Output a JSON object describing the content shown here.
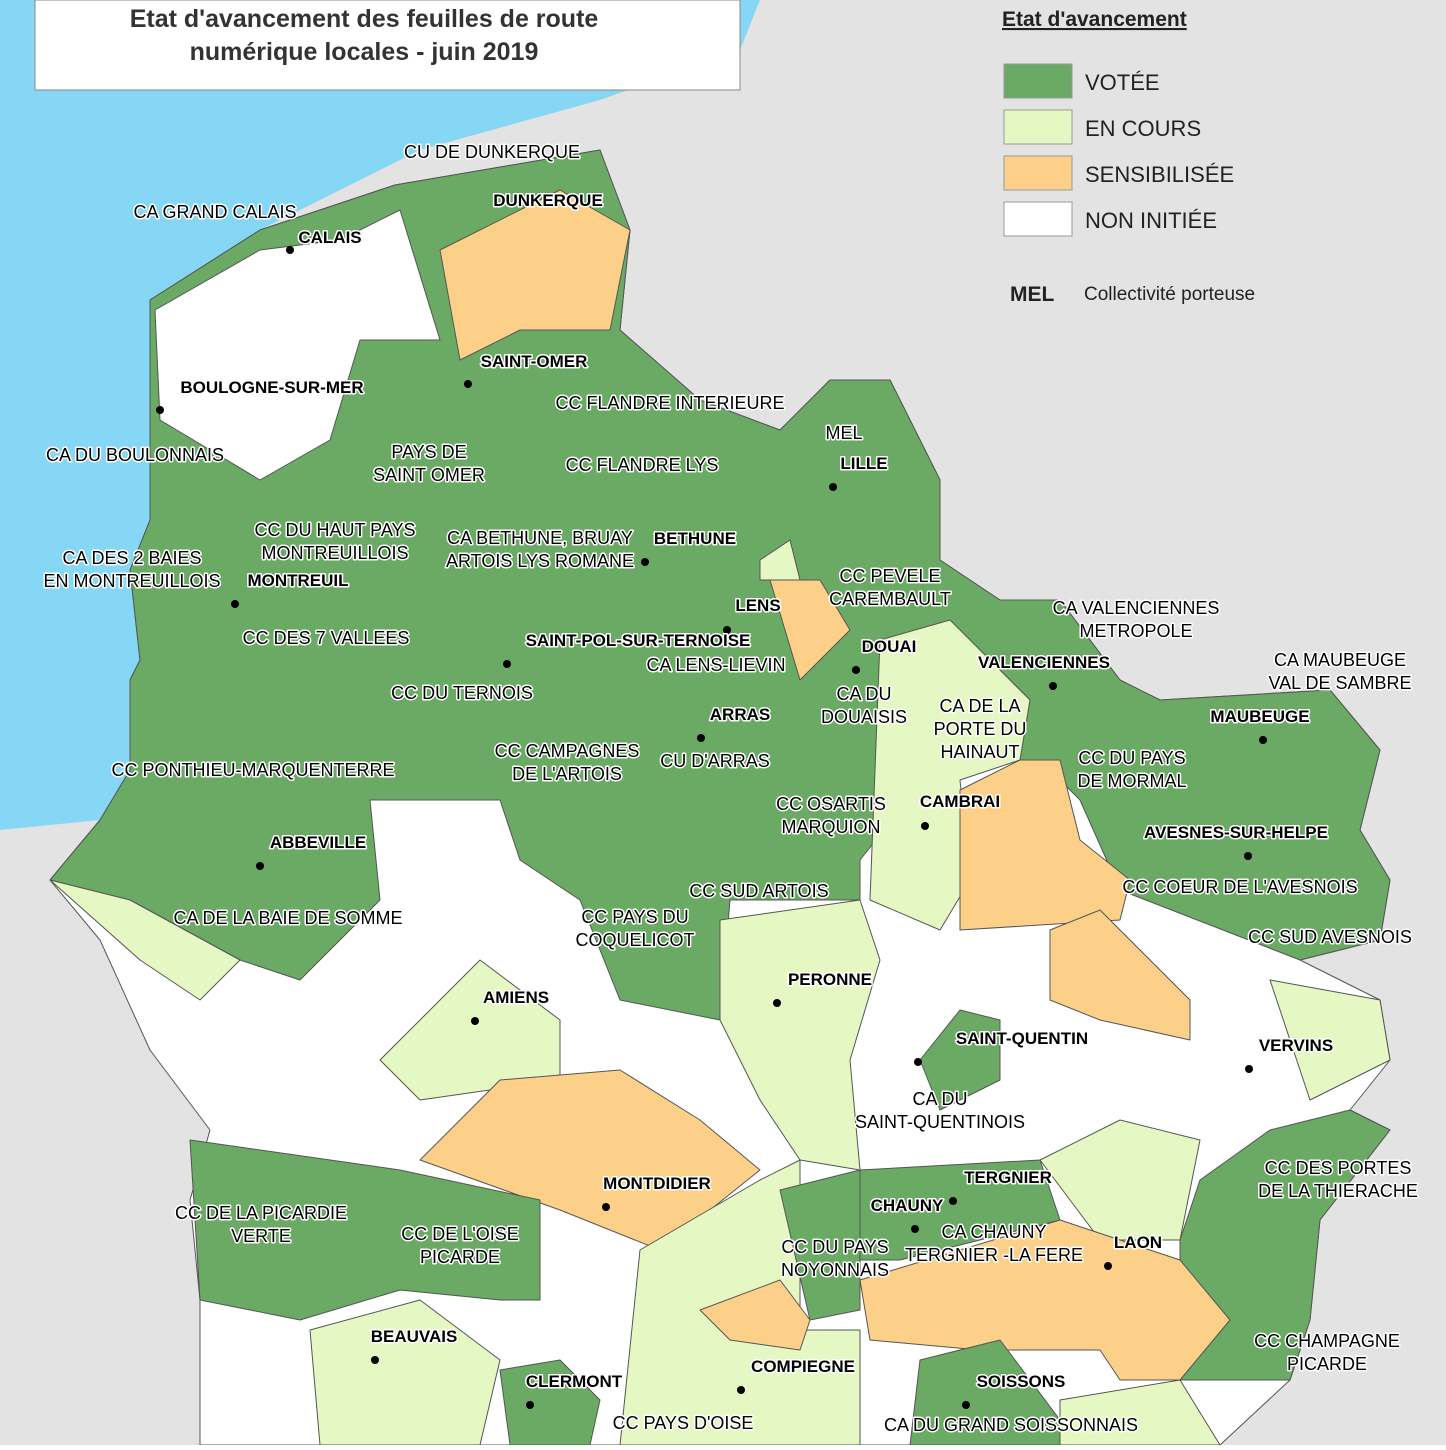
{
  "title": [
    "Etat d'avancement des feuilles de route",
    "numérique locales - juin 2019"
  ],
  "legend": {
    "title": "Etat d'avancement",
    "items": [
      {
        "label": "VOTÉE",
        "color": "#6aaa64"
      },
      {
        "label": "EN COURS",
        "color": "#e5f7c2"
      },
      {
        "label": "SENSIBILISÉE",
        "color": "#fdd089"
      },
      {
        "label": "NON INITIÉE",
        "color": "#ffffff"
      }
    ],
    "abbreviation": "MEL",
    "abbreviation_note": "Collectivité porteuse"
  },
  "regions": [
    [
      "CU DE DUNKERQUE"
    ],
    [
      "CA GRAND CALAIS"
    ],
    [
      "CC FLANDRE INTERIEURE"
    ],
    [
      "CC FLANDRE LYS"
    ],
    [
      "MEL"
    ],
    [
      "CA DU BOULONNAIS"
    ],
    [
      "PAYS DE",
      "SAINT OMER"
    ],
    [
      "CC DU HAUT PAYS",
      "MONTREUILLOIS"
    ],
    [
      "CA BETHUNE, BRUAY",
      "ARTOIS LYS ROMANE"
    ],
    [
      "CA DES 2 BAIES",
      "EN MONTREUILLOIS"
    ],
    [
      "CC DES 7 VALLEES"
    ],
    [
      "CC PEVELE",
      "CAREMBAULT"
    ],
    [
      "CA VALENCIENNES",
      "METROPOLE"
    ],
    [
      "CA LENS-LIEVIN"
    ],
    [
      "CC DU TERNOIS"
    ],
    [
      "CA MAUBEUGE",
      "VAL DE SAMBRE"
    ],
    [
      "CA DU",
      "DOUAISIS"
    ],
    [
      "CA DE LA",
      "PORTE DU",
      "HAINAUT"
    ],
    [
      "CC CAMPAGNES",
      "DE L'ARTOIS"
    ],
    [
      "CU D'ARRAS"
    ],
    [
      "CC DU PAYS",
      "DE MORMAL"
    ],
    [
      "CC PONTHIEU-MARQUENTERRE"
    ],
    [
      "CC OSARTIS",
      "MARQUION"
    ],
    [
      "CC COEUR DE L'AVESNOIS"
    ],
    [
      "CC SUD ARTOIS"
    ],
    [
      "CA DE LA BAIE DE SOMME"
    ],
    [
      "CC PAYS DU",
      "COQUELICOT"
    ],
    [
      "CC SUD AVESNOIS"
    ],
    [
      "CA DU",
      "SAINT-QUENTINOIS"
    ],
    [
      "CC DES PORTES",
      "DE LA THIERACHE"
    ],
    [
      "CC DE LA PICARDIE",
      "VERTE"
    ],
    [
      "CC DE L'OISE",
      "PICARDE"
    ],
    [
      "CA CHAUNY",
      "TERGNIER -LA FERE"
    ],
    [
      "CC DU PAYS",
      "NOYONNAIS"
    ],
    [
      "CC CHAMPAGNE",
      "PICARDE"
    ],
    [
      "CA DU GRAND SOISSONNAIS"
    ],
    [
      "CC PAYS D'OISE"
    ]
  ],
  "cities": [
    "DUNKERQUE",
    "CALAIS",
    "SAINT-OMER",
    "BOULOGNE-SUR-MER",
    "LILLE",
    "BETHUNE",
    "MONTREUIL",
    "LENS",
    "SAINT-POL-SUR-TERNOISE",
    "DOUAI",
    "VALENCIENNES",
    "ARRAS",
    "MAUBEUGE",
    "CAMBRAI",
    "ABBEVILLE",
    "AVESNES-SUR-HELPE",
    "PERONNE",
    "AMIENS",
    "SAINT-QUENTIN",
    "VERVINS",
    "TERGNIER",
    "MONTDIDIER",
    "CHAUNY",
    "LAON",
    "BEAUVAIS",
    "COMPIEGNE",
    "SOISSONS",
    "CLERMONT"
  ]
}
